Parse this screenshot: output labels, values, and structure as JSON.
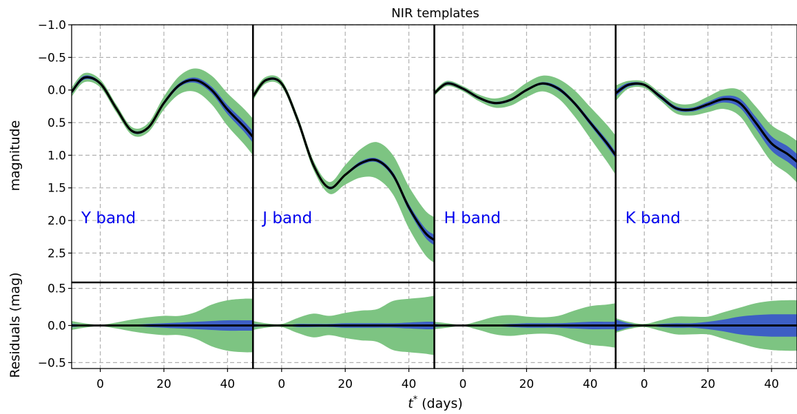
{
  "chart_data": {
    "type": "line",
    "title": "NIR templates",
    "xlabel_var": "t",
    "xlabel_sup": "*",
    "xlabel_unit": "(days)",
    "ylabel_top": "magnitude",
    "ylabel_bottom": "Residuals (mag)",
    "xlim": [
      -9,
      48
    ],
    "xticks": [
      0,
      20,
      40
    ],
    "top_ylim": [
      -1.0,
      2.95
    ],
    "top_yticks": [
      -1.0,
      -0.5,
      0.0,
      0.5,
      1.0,
      1.5,
      2.0,
      2.5
    ],
    "bottom_ylim": [
      -0.58,
      0.58
    ],
    "bottom_yticks": [
      -0.5,
      0.0,
      0.5
    ],
    "grid": true,
    "colors": {
      "mean": "#000000",
      "inner_band": "#3d5fc4",
      "outer_band": "#7dc482",
      "label": "#0000ee"
    },
    "x": [
      -9,
      -5,
      0,
      5,
      10,
      15,
      20,
      25,
      30,
      35,
      40,
      45,
      48
    ],
    "bands": [
      {
        "label": "Y band",
        "mean": [
          0.03,
          -0.19,
          -0.1,
          0.28,
          0.63,
          0.58,
          0.2,
          -0.08,
          -0.15,
          0.0,
          0.3,
          0.55,
          0.72
        ],
        "inner": [
          0.03,
          0.03,
          0.02,
          0.02,
          0.02,
          0.02,
          0.03,
          0.03,
          0.04,
          0.05,
          0.07,
          0.08,
          0.09
        ],
        "outer": [
          0.07,
          0.07,
          0.06,
          0.06,
          0.06,
          0.07,
          0.1,
          0.14,
          0.18,
          0.22,
          0.25,
          0.27,
          0.28
        ],
        "res_inner": [
          0.02,
          0.01,
          0.0,
          0.01,
          0.01,
          0.02,
          0.03,
          0.04,
          0.05,
          0.06,
          0.07,
          0.07,
          0.07
        ],
        "res_outer": [
          0.06,
          0.03,
          0.01,
          0.04,
          0.08,
          0.11,
          0.13,
          0.13,
          0.18,
          0.28,
          0.34,
          0.36,
          0.36
        ]
      },
      {
        "label": "J band",
        "mean": [
          0.1,
          -0.15,
          -0.1,
          0.45,
          1.15,
          1.5,
          1.3,
          1.12,
          1.08,
          1.3,
          1.8,
          2.18,
          2.3
        ],
        "inner": [
          0.03,
          0.02,
          0.02,
          0.02,
          0.02,
          0.02,
          0.02,
          0.03,
          0.03,
          0.04,
          0.05,
          0.07,
          0.08
        ],
        "outer": [
          0.06,
          0.05,
          0.05,
          0.06,
          0.07,
          0.09,
          0.15,
          0.22,
          0.28,
          0.3,
          0.32,
          0.34,
          0.35
        ],
        "res_inner": [
          0.02,
          0.01,
          0.0,
          0.02,
          0.02,
          0.02,
          0.03,
          0.03,
          0.03,
          0.03,
          0.04,
          0.05,
          0.05
        ],
        "res_outer": [
          0.06,
          0.03,
          0.02,
          0.1,
          0.16,
          0.13,
          0.17,
          0.2,
          0.22,
          0.33,
          0.36,
          0.38,
          0.4
        ]
      },
      {
        "label": "H band",
        "mean": [
          0.05,
          -0.1,
          -0.02,
          0.12,
          0.2,
          0.15,
          0.0,
          -0.1,
          -0.02,
          0.2,
          0.5,
          0.8,
          1.0
        ],
        "inner": [
          0.02,
          0.02,
          0.02,
          0.02,
          0.02,
          0.02,
          0.02,
          0.02,
          0.03,
          0.03,
          0.04,
          0.05,
          0.05
        ],
        "outer": [
          0.04,
          0.04,
          0.04,
          0.05,
          0.07,
          0.09,
          0.11,
          0.12,
          0.15,
          0.2,
          0.24,
          0.28,
          0.3
        ],
        "res_inner": [
          0.02,
          0.01,
          0.0,
          0.01,
          0.01,
          0.02,
          0.03,
          0.03,
          0.03,
          0.04,
          0.05,
          0.05,
          0.05
        ],
        "res_outer": [
          0.05,
          0.03,
          0.01,
          0.06,
          0.12,
          0.14,
          0.12,
          0.11,
          0.13,
          0.2,
          0.26,
          0.28,
          0.3
        ]
      },
      {
        "label": "K band",
        "mean": [
          0.05,
          -0.08,
          -0.08,
          0.1,
          0.28,
          0.3,
          0.22,
          0.14,
          0.2,
          0.5,
          0.82,
          0.98,
          1.1
        ],
        "inner": [
          0.05,
          0.03,
          0.02,
          0.03,
          0.03,
          0.03,
          0.04,
          0.05,
          0.07,
          0.09,
          0.11,
          0.12,
          0.12
        ],
        "outer": [
          0.12,
          0.06,
          0.05,
          0.06,
          0.08,
          0.09,
          0.12,
          0.15,
          0.2,
          0.25,
          0.28,
          0.3,
          0.32
        ],
        "res_inner": [
          0.08,
          0.03,
          0.0,
          0.02,
          0.03,
          0.03,
          0.05,
          0.08,
          0.12,
          0.14,
          0.15,
          0.15,
          0.15
        ],
        "res_outer": [
          0.1,
          0.05,
          0.02,
          0.07,
          0.12,
          0.12,
          0.12,
          0.18,
          0.24,
          0.3,
          0.33,
          0.34,
          0.34
        ]
      }
    ]
  }
}
